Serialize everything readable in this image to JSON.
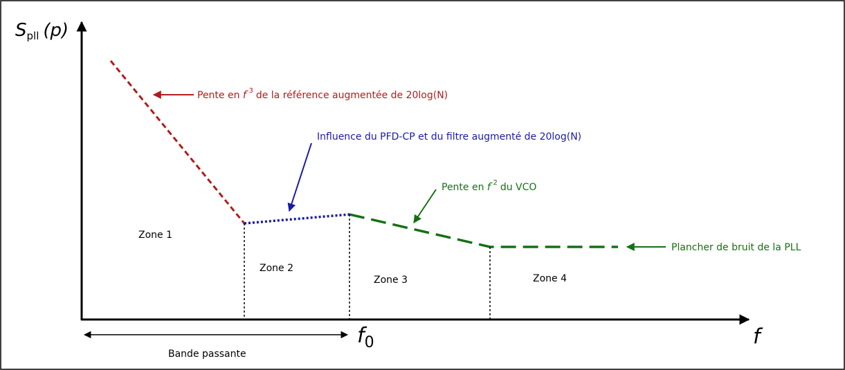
{
  "axes": {
    "y_label": {
      "main": "S",
      "sub": "pll",
      "suffix": "(p)"
    },
    "x_label": "f",
    "f0": {
      "main": "f",
      "sub": "0"
    }
  },
  "annotations": [
    {
      "prefix": "Pente en",
      "symbol": "f",
      "exponent": "-3",
      "suffix": "de la référence augmentée de 20log(N)"
    },
    {
      "text": "Influence du PFD-CP et du filtre augmenté de 20log(N)"
    },
    {
      "prefix": "Pente en",
      "symbol": "f",
      "exponent": "-2",
      "suffix": "du VCO"
    },
    {
      "text": "Plancher de bruit de la PLL"
    }
  ],
  "zones": [
    "Zone 1",
    "Zone 2",
    "Zone 3",
    "Zone 4"
  ],
  "bandwidth": "Bande passante"
}
